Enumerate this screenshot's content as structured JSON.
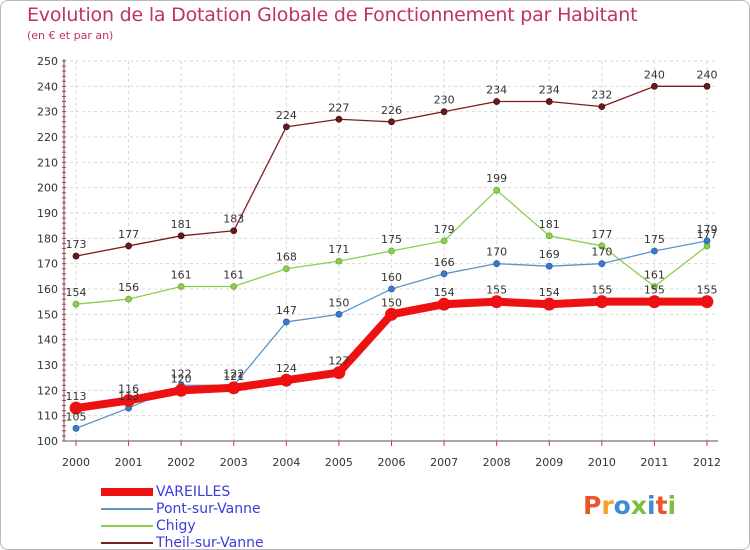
{
  "header": {
    "title": "Evolution de la Dotation Globale de Fonctionnement par Habitant",
    "subtitle": "(en € et par an)"
  },
  "logo": {
    "text": "Proxiti",
    "colors": [
      "#e8562a",
      "#f2a22b",
      "#3f8bd6",
      "#7cbf3a",
      "#3f8bd6",
      "#e8562a",
      "#7cbf3a"
    ]
  },
  "chart_data": {
    "type": "line",
    "title": "Evolution de la Dotation Globale de Fonctionnement par Habitant",
    "subtitle": "(en € et par an)",
    "xlabel": "",
    "ylabel": "",
    "ylim": [
      100,
      250
    ],
    "yticks": [
      100,
      110,
      120,
      130,
      140,
      150,
      160,
      170,
      180,
      190,
      200,
      210,
      220,
      230,
      240,
      250
    ],
    "grid": true,
    "legend": "bottom-left",
    "x": [
      2000,
      2001,
      2002,
      2003,
      2004,
      2005,
      2006,
      2007,
      2008,
      2009,
      2010,
      2011,
      2012
    ],
    "series": [
      {
        "name": "Theil-sur-Vanne",
        "color": "#7a1f1f",
        "values": [
          173,
          177,
          181,
          183,
          224,
          227,
          226,
          230,
          234,
          234,
          232,
          240,
          240
        ]
      },
      {
        "name": "Chigy",
        "color": "#8ccf4e",
        "values": [
          154,
          156,
          161,
          161,
          168,
          171,
          175,
          179,
          199,
          181,
          177,
          161,
          177
        ]
      },
      {
        "name": "Pont-sur-Vanne",
        "color": "#5b96c8",
        "values": [
          105,
          113,
          122,
          122,
          147,
          150,
          160,
          166,
          170,
          169,
          170,
          175,
          179
        ]
      },
      {
        "name": "VAREILLES",
        "color": "#ee1111",
        "values": [
          113,
          116,
          120,
          121,
          124,
          127,
          150,
          154,
          155,
          154,
          155,
          155,
          155
        ]
      }
    ]
  }
}
